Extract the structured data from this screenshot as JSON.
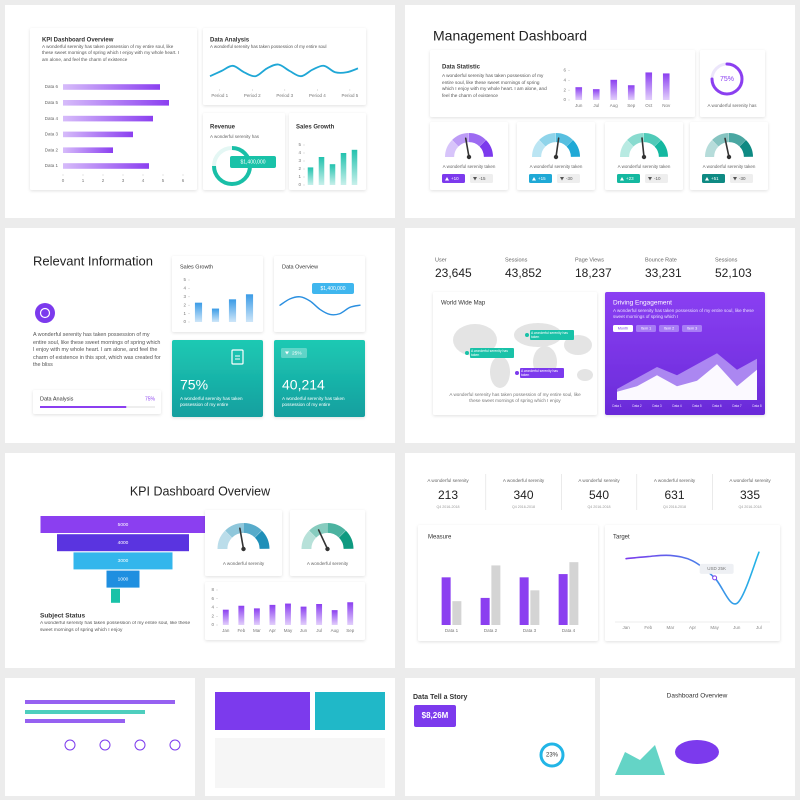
{
  "slide_1": {
    "kpi_card": {
      "title": "KPI Dashboard Overview",
      "text": "A wonderful serenity has taken possession of my entire soul, like these sweet mornings of spring which I enjoy with my whole heart. I am alone, and feel the charm of existence",
      "chart": {
        "type": "bar",
        "orientation": "horizontal",
        "categories": [
          "Data 6",
          "Data 5",
          "Data 4",
          "Data 3",
          "Data 2",
          "Data 1"
        ],
        "values": [
          4.85,
          5.3,
          4.5,
          3.5,
          2.5,
          4.3
        ],
        "xlim": [
          0,
          6
        ],
        "xticks": [
          0,
          1,
          2,
          3,
          4,
          5,
          6
        ],
        "color": "#8b3ff0"
      }
    },
    "data_analysis_card": {
      "title": "Data Analysis",
      "text": "A wonderful serenity has taken possession of my entire soul",
      "chart": {
        "type": "line",
        "x": [
          0.7,
          1.05,
          1.4,
          1.75,
          2.1,
          2.45,
          2.8,
          3.15,
          3.5,
          3.85,
          4.2,
          4.55,
          4.9,
          5.25
        ],
        "values": [
          3,
          5,
          7,
          4.5,
          3,
          6,
          7.5,
          5,
          3,
          5.5,
          7,
          4.5,
          4.5,
          6
        ],
        "xlim": [
          0.7,
          5.25
        ],
        "ylim": [
          0,
          10
        ],
        "xticks": [
          {
            "value": 1,
            "label": "Period 1"
          },
          {
            "value": 2,
            "label": "Period 2"
          },
          {
            "value": 3,
            "label": "Period 3"
          },
          {
            "value": 4,
            "label": "Period 4"
          },
          {
            "value": 5,
            "label": "Period 5"
          }
        ],
        "color": "#1fa7d6"
      }
    },
    "revenue_card": {
      "title": "Revenue",
      "text": "A wonderful serenity has",
      "badge": "$1,400,000"
    },
    "sales_growth_card": {
      "title": "Sales Growth",
      "chart": {
        "type": "bar",
        "values": [
          2.2,
          3.5,
          2.6,
          4,
          4.4
        ],
        "ylim": [
          0,
          5
        ],
        "yticks": [
          0,
          1,
          2,
          3,
          4,
          5
        ],
        "color": "#22c2ae"
      }
    }
  },
  "slide_2": {
    "title": "Management Dashboard",
    "statistic_card": {
      "title": "Data Statistic",
      "text": "A wonderful serenity has taken possession of my entire soul, like these sweet mornings of spring which I enjoy with my whole heart. I am alone, and feel the charm of existence",
      "chart": {
        "type": "bar",
        "categories": [
          "Jun",
          "Jul",
          "Aug",
          "Sep",
          "Oct",
          "Nov"
        ],
        "values": [
          2.6,
          2.2,
          4.1,
          3.0,
          5.6,
          5.4
        ],
        "ylim": [
          0,
          6.5
        ],
        "yticks": [
          0,
          2,
          4,
          6
        ],
        "color": "#8b3ff0"
      }
    },
    "progress_card": {
      "value": 75,
      "value_label": "75%",
      "text": "A wonderful serenity has",
      "color": "#8b3ff0"
    },
    "gauges": [
      {
        "text": "A wonderful serenity taken",
        "up": "+10",
        "down": "-15",
        "color": "#7c3aed"
      },
      {
        "text": "A wonderful serenity taken",
        "up": "+15",
        "down": "-30",
        "color": "#1fa9d6"
      },
      {
        "text": "A wonderful serenity taken",
        "up": "+23",
        "down": "-10",
        "color": "#14b8a0"
      },
      {
        "text": "A wonderful serenity taken",
        "up": "+51",
        "down": "-30",
        "color": "#0e8a83"
      }
    ]
  },
  "slide_3": {
    "title": "Relevant Information",
    "text": "A wonderful serenity has taken possession of my entire soul, like these sweet mornings of spring which I enjoy with my whole heart. I am alone, and feel the charm of existence in this spot, which was created for the bliss",
    "progress": {
      "label": "Data Analysis",
      "value": 75,
      "value_label": "75%",
      "color": "#8b3ff0"
    },
    "sales_growth_card": {
      "title": "Sales Growth",
      "chart": {
        "type": "bar",
        "values": [
          2.3,
          1.6,
          2.7,
          3.3
        ],
        "ylim": [
          0,
          5
        ],
        "yticks": [
          0,
          1,
          2,
          3,
          4,
          5
        ],
        "color": "#3a9be6"
      }
    },
    "data_overview_card": {
      "title": "Data Overview",
      "badge": "$1,400,000",
      "chart": {
        "type": "line",
        "values": [
          4,
          5.5,
          6,
          5,
          3,
          1.8,
          2,
          3.5,
          4
        ],
        "ylim": [
          0,
          10
        ],
        "color": "#2a8fe0"
      }
    },
    "teal_card_1": {
      "value": "75%",
      "text": "A wonderful serenity has taken possession of my entire"
    },
    "teal_card_2": {
      "badge": "25%",
      "value": "40,214",
      "text": "A wonderful serenity has taken possession of my entire"
    }
  },
  "slide_4": {
    "stats": [
      {
        "label": "User",
        "value": "23,645"
      },
      {
        "label": "Sessions",
        "value": "43,852"
      },
      {
        "label": "Page Views",
        "value": "18,237"
      },
      {
        "label": "Bounce Rate",
        "value": "33,231"
      },
      {
        "label": "Sessions",
        "value": "52,103"
      }
    ],
    "map_card": {
      "title": "World Wide Map",
      "text": "A wonderful serenity has taken possession of my entire soul, like these sweet mornings of spring which I enjoy",
      "pins": [
        "A wonderful serenity has taken",
        "A wonderful serenity has taken",
        "A wonderful serenity has taken"
      ]
    },
    "engagement_card": {
      "title": "Driving Engagement",
      "text": "A wonderful serenity has taken possession of my entire soul, like these sweet mornings of spring which I",
      "buttons": [
        "Month",
        "Item 1",
        "Item 2",
        "Item 3"
      ],
      "chart": {
        "type": "area",
        "categories": [
          "Data 1",
          "Data 2",
          "Data 3",
          "Data 4",
          "Data 5",
          "Data 6",
          "Data 7",
          "Data 8"
        ],
        "ylim": [
          0,
          10
        ],
        "series": [
          {
            "color": "#b99cf5",
            "values": [
              2,
              4,
              6,
              4.5,
              6.5,
              8.5,
              5.5,
              7.5
            ]
          },
          {
            "color": "#ffffff",
            "values": [
              1.5,
              2.5,
              4.5,
              2.5,
              3.5,
              6.5,
              2.5,
              5.5
            ]
          }
        ]
      }
    }
  },
  "slide_5": {
    "title": "KPI Dashboard Overview",
    "funnel": {
      "type": "funnel",
      "values": [
        5000,
        4000,
        3000,
        1000
      ],
      "colors": [
        "#8b3ff0",
        "#5a34e0",
        "#33b6ec",
        "#1f8fe0"
      ]
    },
    "status": {
      "title": "Subject Status",
      "text": "A wonderful serenity has taken possession of my entire soul, like these sweet mornings of spring which I enjoy"
    },
    "gauges": [
      {
        "text": "A wonderful serenity",
        "color": "#1f8fb8"
      },
      {
        "text": "A wonderful serenity",
        "color": "#0f9a80"
      }
    ],
    "chart": {
      "type": "bar",
      "categories": [
        "Jan",
        "Feb",
        "Mar",
        "Apr",
        "May",
        "Jun",
        "Jul",
        "Aug",
        "Sep"
      ],
      "values": [
        3.5,
        4.4,
        3.8,
        4.6,
        4.9,
        4.2,
        4.8,
        3.4,
        5.2
      ],
      "ylim": [
        0,
        8
      ],
      "yticks": [
        0,
        2,
        4,
        6,
        8
      ],
      "color": "#8b3ff0"
    }
  },
  "slide_6": {
    "stats": [
      {
        "label": "A wonderful serenity",
        "value": "213",
        "sub": "Q4 2016-2018"
      },
      {
        "label": "A wonderful serenity",
        "value": "340",
        "sub": "Q4 2016-2018"
      },
      {
        "label": "A wonderful serenity",
        "value": "540",
        "sub": "Q4 2016-2018"
      },
      {
        "label": "A wonderful serenity",
        "value": "631",
        "sub": "Q4 2016-2018"
      },
      {
        "label": "A wonderful serenity",
        "value": "335",
        "sub": "Q4 2016-2018"
      }
    ],
    "measure_card": {
      "title": "Measure",
      "chart": {
        "type": "bar",
        "categories": [
          "Data 1",
          "Data 2",
          "Data 3",
          "Data 4"
        ],
        "ylim": [
          0,
          6
        ],
        "series": [
          {
            "color": "#8b3ff0",
            "values": [
              4.4,
              2.5,
              4.4,
              4.7
            ]
          },
          {
            "color": "#d4d4d4",
            "values": [
              2.2,
              5.5,
              3.2,
              5.8
            ]
          }
        ]
      }
    },
    "target_card": {
      "title": "Target",
      "badge": "USD 25K",
      "chart": {
        "type": "line",
        "categories": [
          "Jan",
          "Feb",
          "Mar",
          "Apr",
          "May",
          "Jun",
          "Jul"
        ],
        "values": [
          5.0,
          5.2,
          5.3,
          4.8,
          3.2,
          0.8,
          5.6
        ],
        "ylim": [
          0,
          6
        ],
        "color": "#7c3aed"
      }
    }
  },
  "thumbs": {
    "story": {
      "title": "Data Tell a Story",
      "value": "$8,26M",
      "percent": "23%"
    },
    "overview": {
      "title": "Dashboard Overview"
    }
  }
}
